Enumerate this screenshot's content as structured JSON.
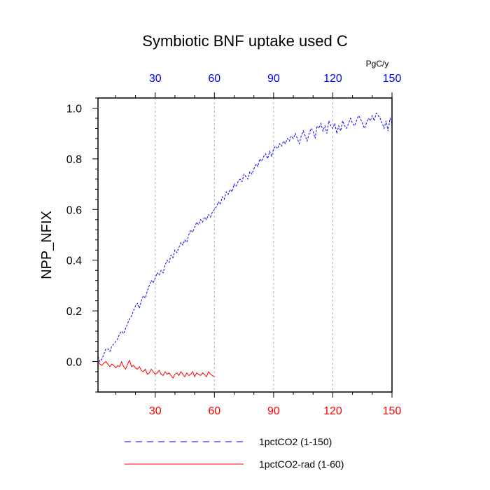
{
  "chart_data": {
    "type": "line",
    "title": "Symbiotic BNF uptake used C",
    "ylabel": "NPP_NFIX",
    "top_axis_unit": "PgC/y",
    "xlim": [
      1,
      150
    ],
    "ylim": [
      -0.12,
      1.04
    ],
    "x_ticks": [
      30,
      60,
      90,
      120,
      150
    ],
    "x_ticks_top": [
      30,
      60,
      90,
      120,
      150
    ],
    "y_ticks": [
      0.0,
      0.2,
      0.4,
      0.6,
      0.8,
      1.0
    ],
    "y_tick_labels": [
      "0.0",
      "0.2",
      "0.4",
      "0.6",
      "0.8",
      "1.0"
    ],
    "y_minor_step": 0.04,
    "x_minor_step": 10,
    "grid": "vertical dashed at major x ticks",
    "legend_position": "bottom",
    "bottom_tick_color": "#ff0000",
    "top_tick_color": "#0000ff",
    "series": [
      {
        "name": "1pctCO2 (1-150)",
        "color": "#0000ff",
        "style": "dashed",
        "x": [
          1,
          2,
          3,
          4,
          5,
          6,
          7,
          8,
          9,
          10,
          11,
          12,
          13,
          14,
          15,
          16,
          17,
          18,
          19,
          20,
          21,
          22,
          23,
          24,
          25,
          26,
          27,
          28,
          29,
          30,
          31,
          32,
          33,
          34,
          35,
          36,
          37,
          38,
          39,
          40,
          41,
          42,
          43,
          44,
          45,
          46,
          47,
          48,
          49,
          50,
          51,
          52,
          53,
          54,
          55,
          56,
          57,
          58,
          59,
          60,
          61,
          62,
          63,
          64,
          65,
          66,
          67,
          68,
          69,
          70,
          71,
          72,
          73,
          74,
          75,
          76,
          77,
          78,
          79,
          80,
          81,
          82,
          83,
          84,
          85,
          86,
          87,
          88,
          89,
          90,
          91,
          92,
          93,
          94,
          95,
          96,
          97,
          98,
          99,
          100,
          101,
          102,
          103,
          104,
          105,
          106,
          107,
          108,
          109,
          110,
          111,
          112,
          113,
          114,
          115,
          116,
          117,
          118,
          119,
          120,
          121,
          122,
          123,
          124,
          125,
          126,
          127,
          128,
          129,
          130,
          131,
          132,
          133,
          134,
          135,
          136,
          137,
          138,
          139,
          140,
          141,
          142,
          143,
          144,
          145,
          146,
          147,
          148,
          149,
          150
        ],
        "y": [
          0.02,
          0.0,
          0.01,
          0.03,
          0.05,
          0.05,
          0.04,
          0.06,
          0.07,
          0.08,
          0.09,
          0.11,
          0.12,
          0.11,
          0.13,
          0.15,
          0.17,
          0.18,
          0.2,
          0.22,
          0.23,
          0.21,
          0.24,
          0.26,
          0.25,
          0.28,
          0.3,
          0.32,
          0.31,
          0.33,
          0.35,
          0.34,
          0.36,
          0.35,
          0.38,
          0.4,
          0.39,
          0.42,
          0.41,
          0.44,
          0.43,
          0.45,
          0.47,
          0.46,
          0.48,
          0.47,
          0.5,
          0.52,
          0.51,
          0.53,
          0.55,
          0.54,
          0.56,
          0.55,
          0.57,
          0.56,
          0.58,
          0.57,
          0.59,
          0.6,
          0.61,
          0.63,
          0.62,
          0.65,
          0.64,
          0.67,
          0.66,
          0.68,
          0.67,
          0.7,
          0.69,
          0.71,
          0.72,
          0.71,
          0.74,
          0.73,
          0.72,
          0.75,
          0.74,
          0.76,
          0.78,
          0.77,
          0.8,
          0.79,
          0.81,
          0.82,
          0.8,
          0.83,
          0.81,
          0.84,
          0.85,
          0.84,
          0.86,
          0.85,
          0.87,
          0.86,
          0.88,
          0.87,
          0.89,
          0.88,
          0.9,
          0.88,
          0.86,
          0.89,
          0.91,
          0.89,
          0.87,
          0.9,
          0.92,
          0.91,
          0.88,
          0.93,
          0.92,
          0.94,
          0.91,
          0.93,
          0.9,
          0.95,
          0.93,
          0.92,
          0.94,
          0.9,
          0.93,
          0.91,
          0.95,
          0.93,
          0.92,
          0.94,
          0.96,
          0.94,
          0.93,
          0.95,
          0.97,
          0.96,
          0.94,
          0.92,
          0.94,
          0.96,
          0.95,
          0.97,
          0.95,
          0.98,
          0.97,
          0.96,
          0.94,
          0.92,
          0.95,
          0.91,
          0.96,
          0.94
        ],
        "values_note": ""
      },
      {
        "name": "1pctCO2-rad (1-60)",
        "color": "#ff0000",
        "style": "solid",
        "x": [
          1,
          2,
          3,
          4,
          5,
          6,
          7,
          8,
          9,
          10,
          11,
          12,
          13,
          14,
          15,
          16,
          17,
          18,
          19,
          20,
          21,
          22,
          23,
          24,
          25,
          26,
          27,
          28,
          29,
          30,
          31,
          32,
          33,
          34,
          35,
          36,
          37,
          38,
          39,
          40,
          41,
          42,
          43,
          44,
          45,
          46,
          47,
          48,
          49,
          50,
          51,
          52,
          53,
          54,
          55,
          56,
          57,
          58,
          59,
          60
        ],
        "y": [
          0.0,
          -0.01,
          -0.015,
          -0.005,
          0.0,
          -0.01,
          -0.02,
          -0.01,
          -0.015,
          -0.025,
          -0.015,
          -0.02,
          0.0,
          -0.02,
          -0.03,
          -0.01,
          0.005,
          -0.02,
          -0.015,
          -0.025,
          -0.03,
          -0.02,
          -0.035,
          -0.04,
          -0.03,
          -0.05,
          -0.045,
          -0.03,
          -0.04,
          -0.05,
          -0.045,
          -0.035,
          -0.05,
          -0.055,
          -0.04,
          -0.05,
          -0.045,
          -0.055,
          -0.065,
          -0.05,
          -0.045,
          -0.055,
          -0.04,
          -0.05,
          -0.06,
          -0.045,
          -0.055,
          -0.05,
          -0.04,
          -0.06,
          -0.045,
          -0.05,
          -0.055,
          -0.045,
          -0.05,
          -0.06,
          -0.04,
          -0.05,
          -0.055,
          -0.06
        ]
      }
    ]
  }
}
